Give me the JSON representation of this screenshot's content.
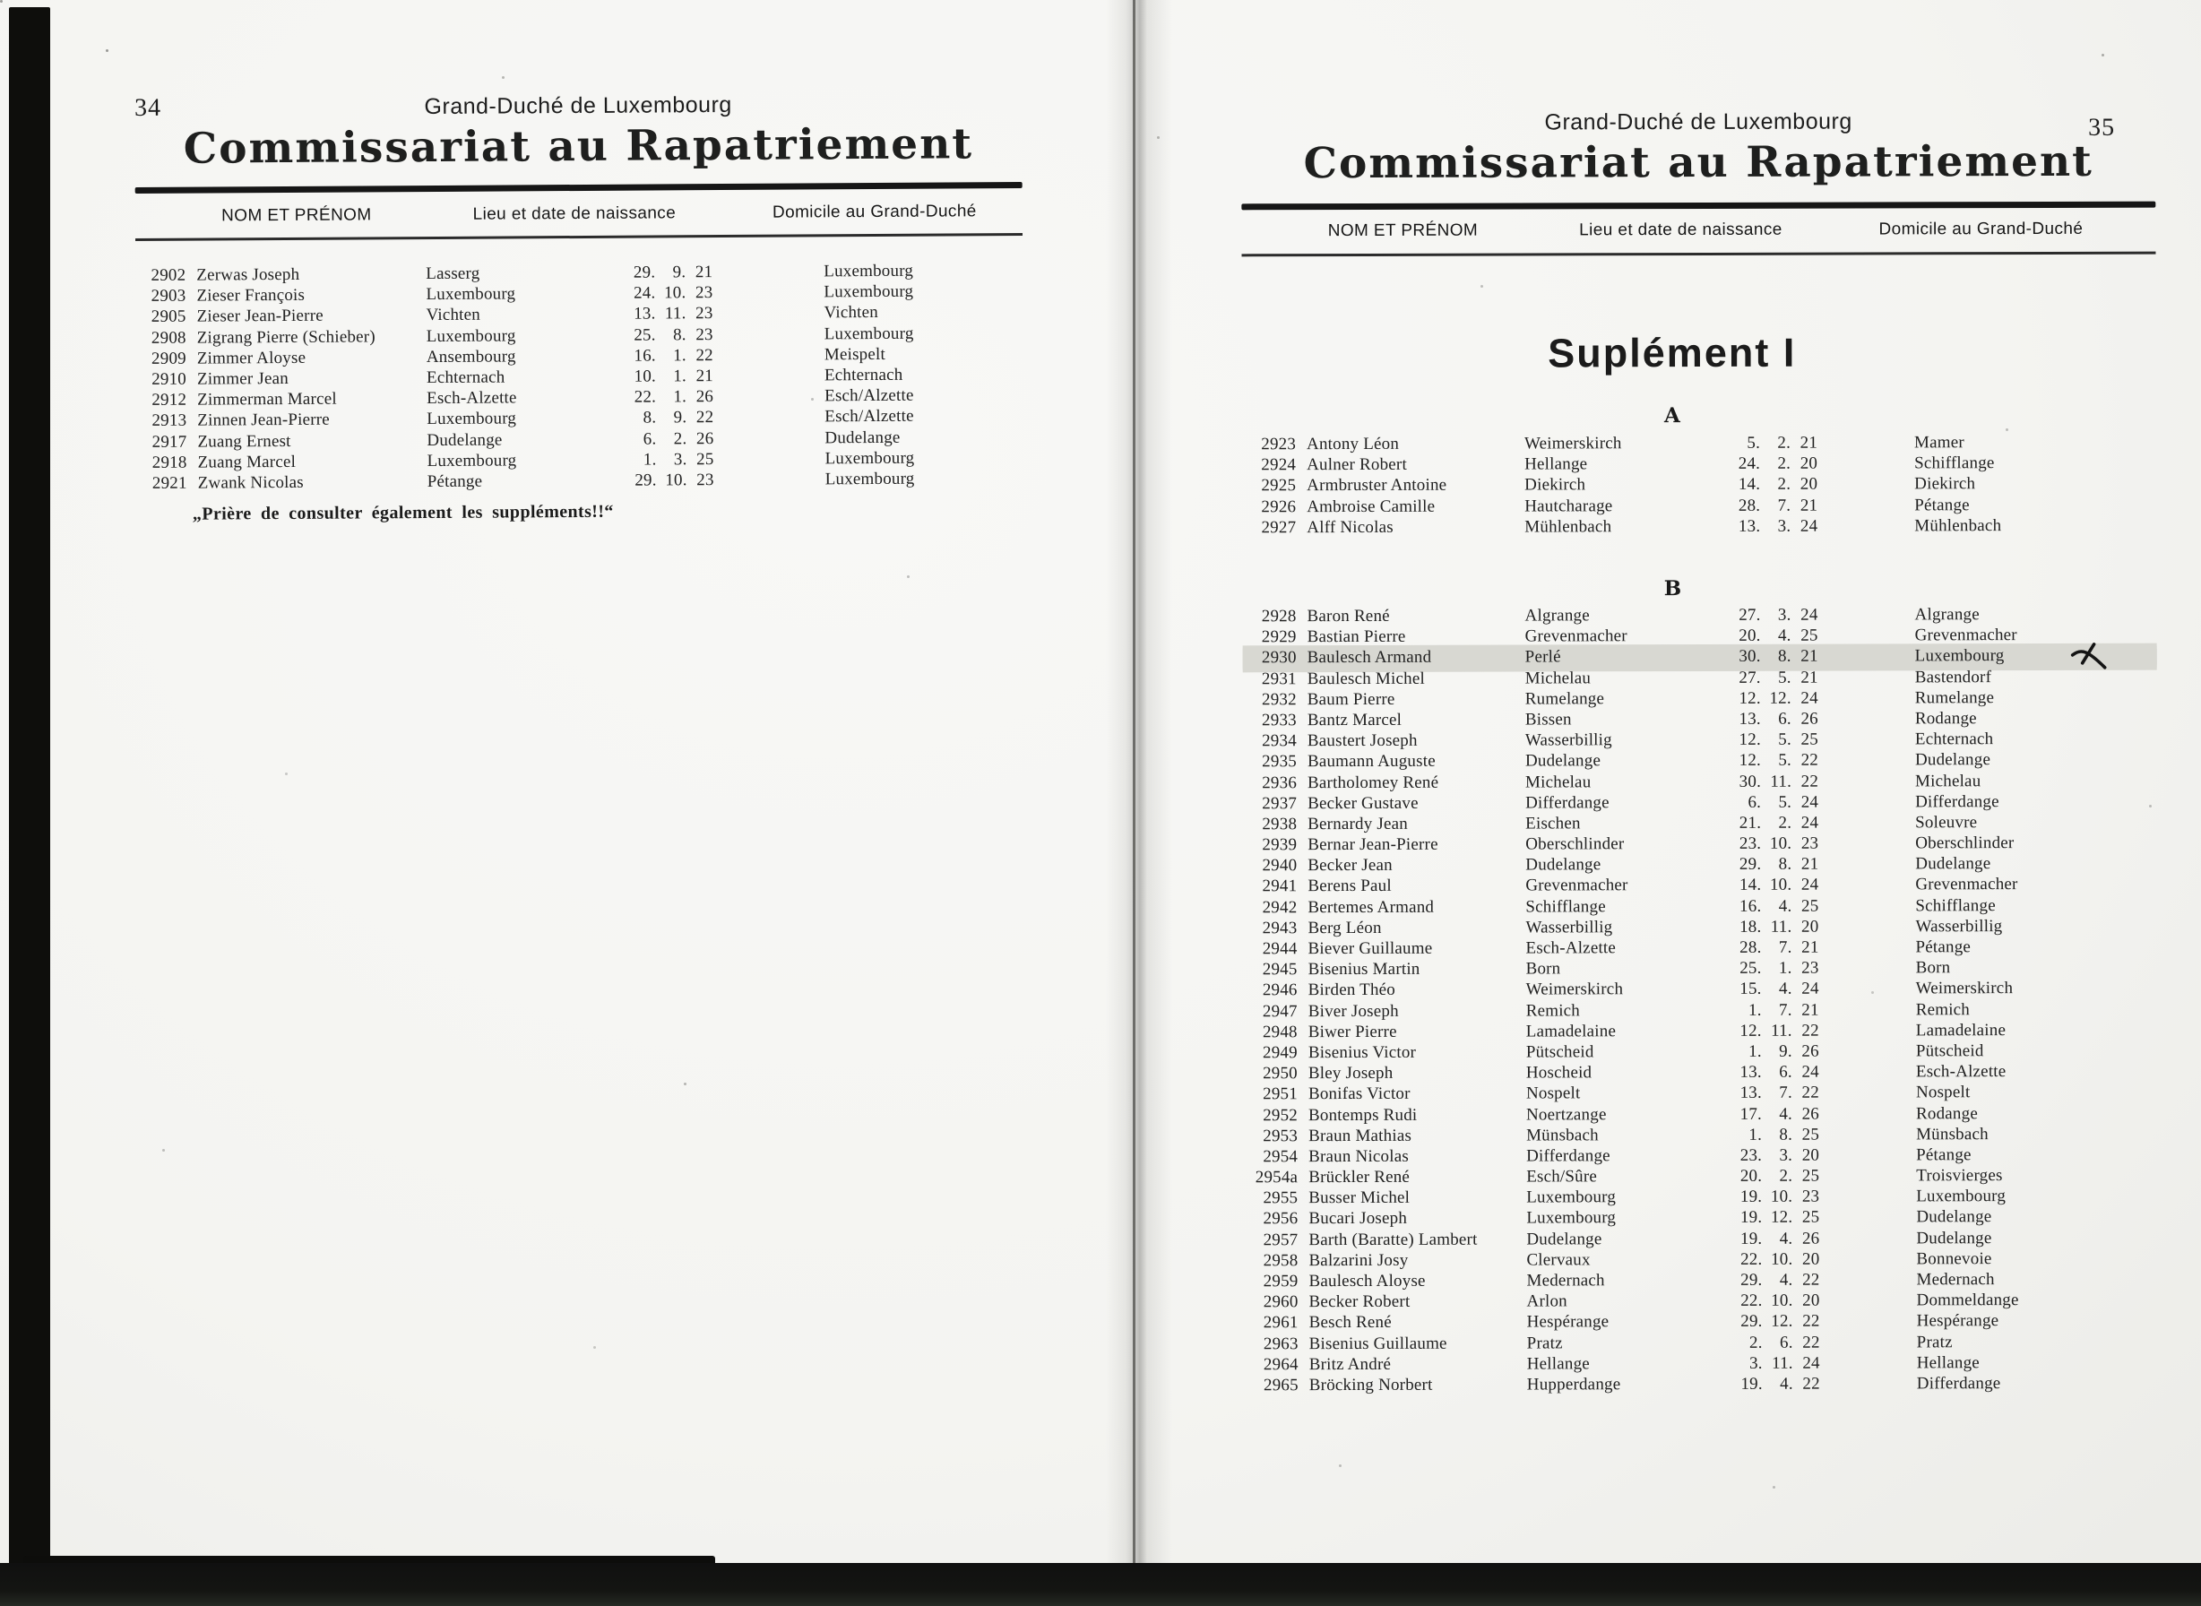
{
  "scan": {
    "left_page": {
      "page_number": "34",
      "region_header": "Grand-Duché de Luxembourg",
      "title": "Commissariat au Rapatriement",
      "columns": {
        "name": "NOM ET PRÉNOM",
        "birth": "Lieu et date de naissance",
        "domicile": "Domicile au Grand-Duché"
      },
      "rows": [
        {
          "id": "2902",
          "name": "Zerwas Joseph",
          "place": "Lasserg",
          "d": "29",
          "m": "9",
          "y": "21",
          "dom": "Luxembourg"
        },
        {
          "id": "2903",
          "name": "Zieser François",
          "place": "Luxembourg",
          "d": "24",
          "m": "10",
          "y": "23",
          "dom": "Luxembourg"
        },
        {
          "id": "2905",
          "name": "Zieser Jean-Pierre",
          "place": "Vichten",
          "d": "13",
          "m": "11",
          "y": "23",
          "dom": "Vichten"
        },
        {
          "id": "2908",
          "name": "Zigrang Pierre (Schieber)",
          "place": "Luxembourg",
          "d": "25",
          "m": "8",
          "y": "23",
          "dom": "Luxembourg"
        },
        {
          "id": "2909",
          "name": "Zimmer Aloyse",
          "place": "Ansembourg",
          "d": "16",
          "m": "1",
          "y": "22",
          "dom": "Meispelt"
        },
        {
          "id": "2910",
          "name": "Zimmer Jean",
          "place": "Echternach",
          "d": "10",
          "m": "1",
          "y": "21",
          "dom": "Echternach"
        },
        {
          "id": "2912",
          "name": "Zimmerman Marcel",
          "place": "Esch-Alzette",
          "d": "22",
          "m": "1",
          "y": "26",
          "dom": "Esch/Alzette"
        },
        {
          "id": "2913",
          "name": "Zinnen Jean-Pierre",
          "place": "Luxembourg",
          "d": "8",
          "m": "9",
          "y": "22",
          "dom": "Esch/Alzette"
        },
        {
          "id": "2917",
          "name": "Zuang Ernest",
          "place": "Dudelange",
          "d": "6",
          "m": "2",
          "y": "26",
          "dom": "Dudelange"
        },
        {
          "id": "2918",
          "name": "Zuang Marcel",
          "place": "Luxembourg",
          "d": "1",
          "m": "3",
          "y": "25",
          "dom": "Luxembourg"
        },
        {
          "id": "2921",
          "name": "Zwank Nicolas",
          "place": "Pétange",
          "d": "29",
          "m": "10",
          "y": "23",
          "dom": "Luxembourg"
        }
      ],
      "footer_note": "„Prière de consulter également les suppléments!!“"
    },
    "right_page": {
      "page_number": "35",
      "region_header": "Grand-Duché de Luxembourg",
      "title": "Commissariat au Rapatriement",
      "columns": {
        "name": "NOM ET PRÉNOM",
        "birth": "Lieu et date de naissance",
        "domicile": "Domicile au Grand-Duché"
      },
      "supplement_title": "Suplément I",
      "section_a": {
        "letter": "A",
        "rows": [
          {
            "id": "2923",
            "name": "Antony Léon",
            "place": "Weimerskirch",
            "d": "5",
            "m": "2",
            "y": "21",
            "dom": "Mamer"
          },
          {
            "id": "2924",
            "name": "Aulner Robert",
            "place": "Hellange",
            "d": "24",
            "m": "2",
            "y": "20",
            "dom": "Schifflange"
          },
          {
            "id": "2925",
            "name": "Armbruster Antoine",
            "place": "Diekirch",
            "d": "14",
            "m": "2",
            "y": "20",
            "dom": "Diekirch"
          },
          {
            "id": "2926",
            "name": "Ambroise Camille",
            "place": "Hautcharage",
            "d": "28",
            "m": "7",
            "y": "21",
            "dom": "Pétange"
          },
          {
            "id": "2927",
            "name": "Alff Nicolas",
            "place": "Mühlenbach",
            "d": "13",
            "m": "3",
            "y": "24",
            "dom": "Mühlenbach"
          }
        ]
      },
      "section_b": {
        "letter": "B",
        "highlight_color": "#d8d8d2",
        "marginal_mark": "handwritten x beside highlighted row 2930",
        "rows": [
          {
            "id": "2928",
            "name": "Baron René",
            "place": "Algrange",
            "d": "27",
            "m": "3",
            "y": "24",
            "dom": "Algrange"
          },
          {
            "id": "2929",
            "name": "Bastian Pierre",
            "place": "Grevenmacher",
            "d": "20",
            "m": "4",
            "y": "25",
            "dom": "Grevenmacher"
          },
          {
            "id": "2930",
            "name": "Baulesch Armand",
            "place": "Perlé",
            "d": "30",
            "m": "8",
            "y": "21",
            "dom": "Luxembourg",
            "highlight": true
          },
          {
            "id": "2931",
            "name": "Baulesch Michel",
            "place": "Michelau",
            "d": "27",
            "m": "5",
            "y": "21",
            "dom": "Bastendorf"
          },
          {
            "id": "2932",
            "name": "Baum Pierre",
            "place": "Rumelange",
            "d": "12",
            "m": "12",
            "y": "24",
            "dom": "Rumelange"
          },
          {
            "id": "2933",
            "name": "Bantz Marcel",
            "place": "Bissen",
            "d": "13",
            "m": "6",
            "y": "26",
            "dom": "Rodange"
          },
          {
            "id": "2934",
            "name": "Baustert Joseph",
            "place": "Wasserbillig",
            "d": "12",
            "m": "5",
            "y": "25",
            "dom": "Echternach"
          },
          {
            "id": "2935",
            "name": "Baumann Auguste",
            "place": "Dudelange",
            "d": "12",
            "m": "5",
            "y": "22",
            "dom": "Dudelange"
          },
          {
            "id": "2936",
            "name": "Bartholomey René",
            "place": "Michelau",
            "d": "30",
            "m": "11",
            "y": "22",
            "dom": "Michelau"
          },
          {
            "id": "2937",
            "name": "Becker Gustave",
            "place": "Differdange",
            "d": "6",
            "m": "5",
            "y": "24",
            "dom": "Differdange"
          },
          {
            "id": "2938",
            "name": "Bernardy Jean",
            "place": "Eischen",
            "d": "21",
            "m": "2",
            "y": "24",
            "dom": "Soleuvre"
          },
          {
            "id": "2939",
            "name": "Bernar Jean-Pierre",
            "place": "Oberschlinder",
            "d": "23",
            "m": "10",
            "y": "23",
            "dom": "Oberschlinder"
          },
          {
            "id": "2940",
            "name": "Becker Jean",
            "place": "Dudelange",
            "d": "29",
            "m": "8",
            "y": "21",
            "dom": "Dudelange"
          },
          {
            "id": "2941",
            "name": "Berens Paul",
            "place": "Grevenmacher",
            "d": "14",
            "m": "10",
            "y": "24",
            "dom": "Grevenmacher"
          },
          {
            "id": "2942",
            "name": "Bertemes Armand",
            "place": "Schifflange",
            "d": "16",
            "m": "4",
            "y": "25",
            "dom": "Schifflange"
          },
          {
            "id": "2943",
            "name": "Berg Léon",
            "place": "Wasserbillig",
            "d": "18",
            "m": "11",
            "y": "20",
            "dom": "Wasserbillig"
          },
          {
            "id": "2944",
            "name": "Biever Guillaume",
            "place": "Esch-Alzette",
            "d": "28",
            "m": "7",
            "y": "21",
            "dom": "Pétange"
          },
          {
            "id": "2945",
            "name": "Bisenius Martin",
            "place": "Born",
            "d": "25",
            "m": "1",
            "y": "23",
            "dom": "Born"
          },
          {
            "id": "2946",
            "name": "Birden Théo",
            "place": "Weimerskirch",
            "d": "15",
            "m": "4",
            "y": "24",
            "dom": "Weimerskirch"
          },
          {
            "id": "2947",
            "name": "Biver Joseph",
            "place": "Remich",
            "d": "1",
            "m": "7",
            "y": "21",
            "dom": "Remich"
          },
          {
            "id": "2948",
            "name": "Biwer Pierre",
            "place": "Lamadelaine",
            "d": "12",
            "m": "11",
            "y": "22",
            "dom": "Lamadelaine"
          },
          {
            "id": "2949",
            "name": "Bisenius Victor",
            "place": "Pütscheid",
            "d": "1",
            "m": "9",
            "y": "26",
            "dom": "Pütscheid"
          },
          {
            "id": "2950",
            "name": "Bley Joseph",
            "place": "Hoscheid",
            "d": "13",
            "m": "6",
            "y": "24",
            "dom": "Esch-Alzette"
          },
          {
            "id": "2951",
            "name": "Bonifas Victor",
            "place": "Nospelt",
            "d": "13",
            "m": "7",
            "y": "22",
            "dom": "Nospelt"
          },
          {
            "id": "2952",
            "name": "Bontemps Rudi",
            "place": "Noertzange",
            "d": "17",
            "m": "4",
            "y": "26",
            "dom": "Rodange"
          },
          {
            "id": "2953",
            "name": "Braun Mathias",
            "place": "Münsbach",
            "d": "1",
            "m": "8",
            "y": "25",
            "dom": "Münsbach"
          },
          {
            "id": "2954",
            "name": "Braun Nicolas",
            "place": "Differdange",
            "d": "23",
            "m": "3",
            "y": "20",
            "dom": "Pétange"
          },
          {
            "id": "2954a",
            "name": "Brückler René",
            "place": "Esch/Sûre",
            "d": "20",
            "m": "2",
            "y": "25",
            "dom": "Troisvierges"
          },
          {
            "id": "2955",
            "name": "Busser Michel",
            "place": "Luxembourg",
            "d": "19",
            "m": "10",
            "y": "23",
            "dom": "Luxembourg"
          },
          {
            "id": "2956",
            "name": "Bucari Joseph",
            "place": "Luxembourg",
            "d": "19",
            "m": "12",
            "y": "25",
            "dom": "Dudelange"
          },
          {
            "id": "2957",
            "name": "Barth (Baratte) Lambert",
            "place": "Dudelange",
            "d": "19",
            "m": "4",
            "y": "26",
            "dom": "Dudelange"
          },
          {
            "id": "2958",
            "name": "Balzarini Josy",
            "place": "Clervaux",
            "d": "22",
            "m": "10",
            "y": "20",
            "dom": "Bonnevoie"
          },
          {
            "id": "2959",
            "name": "Baulesch Aloyse",
            "place": "Medernach",
            "d": "29",
            "m": "4",
            "y": "22",
            "dom": "Medernach"
          },
          {
            "id": "2960",
            "name": "Becker Robert",
            "place": "Arlon",
            "d": "22",
            "m": "10",
            "y": "20",
            "dom": "Dommeldange"
          },
          {
            "id": "2961",
            "name": "Besch René",
            "place": "Hespérange",
            "d": "29",
            "m": "12",
            "y": "22",
            "dom": "Hespérange"
          },
          {
            "id": "2963",
            "name": "Bisenius Guillaume",
            "place": "Pratz",
            "d": "2",
            "m": "6",
            "y": "22",
            "dom": "Pratz"
          },
          {
            "id": "2964",
            "name": "Britz André",
            "place": "Hellange",
            "d": "3",
            "m": "11",
            "y": "24",
            "dom": "Hellange"
          },
          {
            "id": "2965",
            "name": "Bröcking Norbert",
            "place": "Hupperdange",
            "d": "19",
            "m": "4",
            "y": "22",
            "dom": "Differdange"
          }
        ]
      }
    }
  }
}
